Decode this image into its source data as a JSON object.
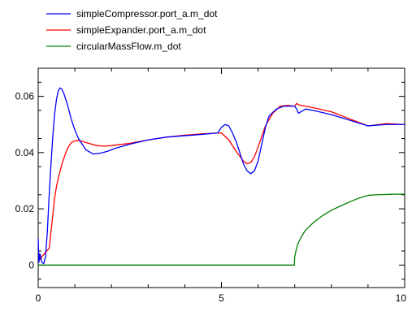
{
  "chart_data": {
    "type": "line",
    "xlim": [
      0,
      10
    ],
    "ylim": [
      -0.008,
      0.07
    ],
    "x_ticks": [
      0,
      5,
      10
    ],
    "y_ticks": [
      0,
      0.02,
      0.04,
      0.06
    ],
    "x_tick_labels": [
      "0",
      "5",
      "10"
    ],
    "y_tick_labels": [
      "0",
      "0.02",
      "0.04",
      "0.06"
    ],
    "grid": false,
    "legend_position": "top-left, above plot",
    "series": [
      {
        "name": "simpleCompressor.port_a.m_dot",
        "color": "#0000ff",
        "x": [
          0,
          0.02,
          0.05,
          0.1,
          0.15,
          0.2,
          0.25,
          0.3,
          0.35,
          0.4,
          0.45,
          0.5,
          0.55,
          0.6,
          0.65,
          0.7,
          0.8,
          0.9,
          1.0,
          1.1,
          1.2,
          1.3,
          1.5,
          1.7,
          1.9,
          2.1,
          2.5,
          3.0,
          3.5,
          4.0,
          4.5,
          4.9,
          5.0,
          5.1,
          5.2,
          5.3,
          5.4,
          5.5,
          5.6,
          5.7,
          5.8,
          5.9,
          6.0,
          6.1,
          6.2,
          6.3,
          6.5,
          6.7,
          6.9,
          7.0,
          7.05,
          7.1,
          7.3,
          7.5,
          8.0,
          8.5,
          9.0,
          9.5,
          10.0
        ],
        "y": [
          0.0095,
          0.001,
          0.004,
          0.001,
          0.0005,
          0.003,
          0.012,
          0.025,
          0.036,
          0.046,
          0.054,
          0.059,
          0.062,
          0.063,
          0.0625,
          0.061,
          0.057,
          0.052,
          0.048,
          0.045,
          0.043,
          0.041,
          0.0395,
          0.0398,
          0.0405,
          0.0415,
          0.043,
          0.0445,
          0.0455,
          0.046,
          0.0465,
          0.047,
          0.049,
          0.05,
          0.0495,
          0.047,
          0.044,
          0.04,
          0.036,
          0.0335,
          0.0325,
          0.0335,
          0.037,
          0.043,
          0.049,
          0.053,
          0.0555,
          0.0565,
          0.0565,
          0.0565,
          0.0555,
          0.054,
          0.0555,
          0.055,
          0.0535,
          0.0515,
          0.0495,
          0.05,
          0.05
        ]
      },
      {
        "name": "simpleExpander.port_a.m_dot",
        "color": "#ff0000",
        "x": [
          0,
          0.05,
          0.1,
          0.2,
          0.3,
          0.35,
          0.4,
          0.45,
          0.5,
          0.55,
          0.6,
          0.65,
          0.7,
          0.8,
          0.9,
          1.0,
          1.1,
          1.2,
          1.4,
          1.6,
          1.8,
          2.0,
          2.5,
          3.0,
          3.5,
          4.0,
          4.5,
          5.0,
          5.2,
          5.4,
          5.6,
          5.7,
          5.8,
          5.9,
          6.0,
          6.2,
          6.4,
          6.6,
          6.8,
          7.0,
          7.05,
          7.1,
          7.3,
          7.5,
          8.0,
          8.5,
          9.0,
          9.5,
          10.0
        ],
        "y": [
          0.005,
          0.002,
          0.003,
          0.0045,
          0.006,
          0.012,
          0.018,
          0.024,
          0.028,
          0.031,
          0.0335,
          0.036,
          0.038,
          0.0415,
          0.0435,
          0.0442,
          0.0443,
          0.044,
          0.0432,
          0.0425,
          0.0423,
          0.0425,
          0.0433,
          0.0445,
          0.0455,
          0.0462,
          0.0467,
          0.047,
          0.0445,
          0.0405,
          0.037,
          0.036,
          0.0365,
          0.0385,
          0.042,
          0.0495,
          0.054,
          0.0565,
          0.0568,
          0.0565,
          0.0575,
          0.057,
          0.0565,
          0.056,
          0.0545,
          0.052,
          0.0495,
          0.0503,
          0.05
        ]
      },
      {
        "name": "circularMassFlow.m_dot",
        "color": "#008000",
        "x": [
          0,
          1,
          2,
          3,
          4,
          5,
          6,
          6.99,
          7.0,
          7.05,
          7.1,
          7.2,
          7.3,
          7.5,
          7.75,
          8.0,
          8.25,
          8.5,
          8.75,
          9.0,
          9.25,
          9.5,
          9.75,
          10.0
        ],
        "y": [
          0,
          0,
          0,
          0,
          0,
          0,
          0,
          0,
          0.003,
          0.006,
          0.008,
          0.0105,
          0.0125,
          0.015,
          0.0175,
          0.0195,
          0.021,
          0.0225,
          0.0238,
          0.0248,
          0.025,
          0.0251,
          0.0252,
          0.0252
        ]
      }
    ]
  }
}
